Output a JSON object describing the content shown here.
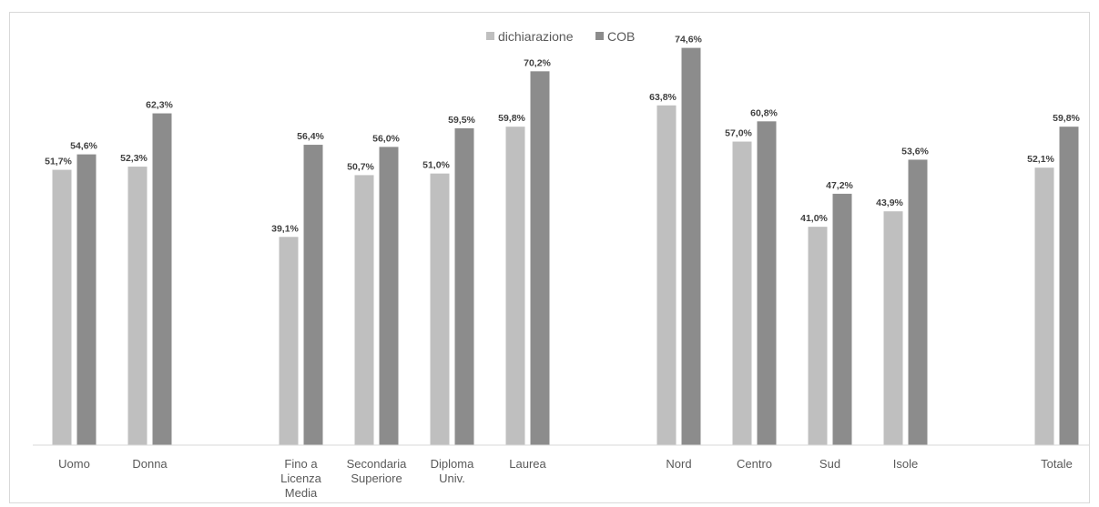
{
  "chart_data": {
    "type": "bar",
    "title": "",
    "xlabel": "",
    "ylabel": "",
    "ylim": [
      0,
      80
    ],
    "grid": false,
    "legend_position": "top-center",
    "groups": [
      {
        "categories": [
          [
            "Uomo"
          ],
          [
            "Donna"
          ]
        ]
      },
      {
        "categories": [
          [
            "Fino a",
            "Licenza",
            "Media"
          ],
          [
            "Secondaria",
            "Superiore"
          ],
          [
            "Diploma",
            "Univ."
          ],
          [
            "Laurea"
          ]
        ]
      },
      {
        "categories": [
          [
            "Nord"
          ],
          [
            "Centro"
          ],
          [
            "Sud"
          ],
          [
            "Isole"
          ]
        ]
      },
      {
        "categories": [
          [
            "Totale"
          ]
        ]
      }
    ],
    "series": [
      {
        "name": "dichiarazione",
        "color": "#bfbfbf",
        "values": [
          51.7,
          52.3,
          39.1,
          50.7,
          51.0,
          59.8,
          63.8,
          57.0,
          41.0,
          43.9,
          52.1
        ],
        "labels": [
          "51,7%",
          "52,3%",
          "39,1%",
          "50,7%",
          "51,0%",
          "59,8%",
          "63,8%",
          "57,0%",
          "41,0%",
          "43,9%",
          "52,1%"
        ]
      },
      {
        "name": "COB",
        "color": "#8c8c8c",
        "values": [
          54.6,
          62.3,
          56.4,
          56.0,
          59.5,
          70.2,
          74.6,
          60.8,
          47.2,
          53.6,
          59.8
        ],
        "labels": [
          "54,6%",
          "62,3%",
          "56,4%",
          "56,0%",
          "59,5%",
          "70,2%",
          "74,6%",
          "60,8%",
          "47,2%",
          "53,6%",
          "59,8%"
        ]
      }
    ]
  }
}
